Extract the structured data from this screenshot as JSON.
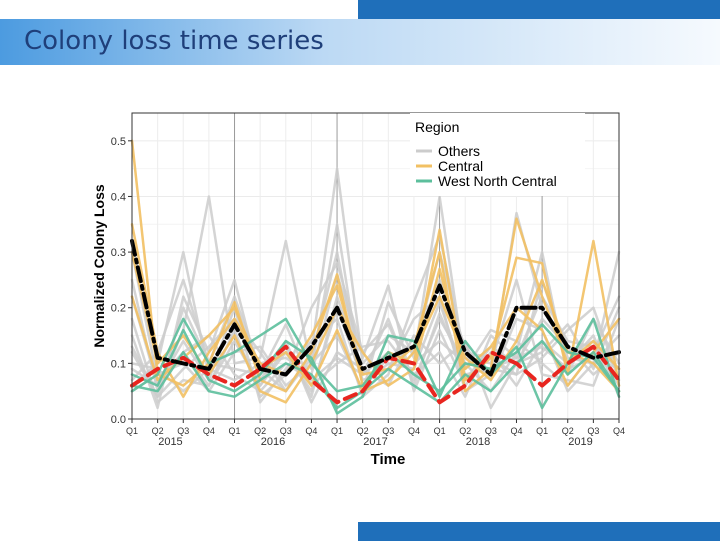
{
  "slide": {
    "title": "Colony loss time series"
  },
  "colors": {
    "others": "#cccccc",
    "central": "#f2c063",
    "west_north_central": "#5cbf9c",
    "black_series": "#000000",
    "red_series": "#e8251f",
    "accent_bar": "#1f6fba"
  },
  "chart_data": {
    "type": "line",
    "xlabel": "Time",
    "ylabel": "Normalized Colony Loss",
    "ylim": [
      0,
      0.55
    ],
    "yticks": [
      0.0,
      0.1,
      0.2,
      0.3,
      0.4,
      0.5
    ],
    "ytick_labels": [
      "0.0",
      "0.1",
      "0.2",
      "0.3",
      "0.4",
      "0.5"
    ],
    "quarters": [
      "Q1",
      "Q2",
      "Q3",
      "Q4",
      "Q1",
      "Q2",
      "Q3",
      "Q4",
      "Q1",
      "Q2",
      "Q3",
      "Q4",
      "Q1",
      "Q2",
      "Q3",
      "Q4",
      "Q1",
      "Q2",
      "Q3",
      "Q4"
    ],
    "years": [
      "2015",
      "2016",
      "2017",
      "2018",
      "2019"
    ],
    "grid": true,
    "legend": {
      "title": "Region",
      "position": "top-right",
      "entries": [
        "Others",
        "Central",
        "West North Central"
      ]
    },
    "series": [
      {
        "name": "Others",
        "group": "others",
        "values": [
          0.09,
          0.06,
          0.12,
          0.15,
          0.08,
          0.05,
          0.1,
          0.07,
          0.11,
          0.08,
          0.12,
          0.1,
          0.14,
          0.1,
          0.09,
          0.11,
          0.13,
          0.09,
          0.11,
          0.09
        ]
      },
      {
        "group": "others",
        "values": [
          0.12,
          0.04,
          0.2,
          0.1,
          0.22,
          0.09,
          0.05,
          0.12,
          0.45,
          0.1,
          0.15,
          0.12,
          0.3,
          0.12,
          0.11,
          0.08,
          0.25,
          0.11,
          0.1,
          0.15
        ]
      },
      {
        "group": "others",
        "values": [
          0.06,
          0.1,
          0.3,
          0.08,
          0.15,
          0.06,
          0.12,
          0.05,
          0.2,
          0.07,
          0.09,
          0.18,
          0.22,
          0.05,
          0.08,
          0.37,
          0.2,
          0.12,
          0.14,
          0.06
        ]
      },
      {
        "group": "others",
        "values": [
          0.25,
          0.05,
          0.16,
          0.4,
          0.1,
          0.11,
          0.32,
          0.09,
          0.35,
          0.06,
          0.1,
          0.09,
          0.21,
          0.07,
          0.13,
          0.1,
          0.12,
          0.17,
          0.09,
          0.2
        ]
      },
      {
        "group": "others",
        "values": [
          0.18,
          0.03,
          0.07,
          0.06,
          0.16,
          0.04,
          0.08,
          0.2,
          0.28,
          0.12,
          0.17,
          0.07,
          0.18,
          0.1,
          0.05,
          0.12,
          0.3,
          0.08,
          0.18,
          0.1
        ]
      },
      {
        "group": "others",
        "values": [
          0.05,
          0.08,
          0.1,
          0.05,
          0.12,
          0.13,
          0.06,
          0.1,
          0.15,
          0.05,
          0.21,
          0.11,
          0.4,
          0.09,
          0.16,
          0.14,
          0.1,
          0.06,
          0.12,
          0.22
        ]
      },
      {
        "group": "others",
        "values": [
          0.15,
          0.02,
          0.22,
          0.12,
          0.25,
          0.07,
          0.14,
          0.03,
          0.12,
          0.09,
          0.06,
          0.15,
          0.1,
          0.14,
          0.02,
          0.1,
          0.18,
          0.13,
          0.08,
          0.12
        ]
      },
      {
        "group": "others",
        "values": [
          0.1,
          0.09,
          0.05,
          0.09,
          0.07,
          0.1,
          0.11,
          0.08,
          0.26,
          0.11,
          0.24,
          0.05,
          0.16,
          0.06,
          0.12,
          0.06,
          0.14,
          0.1,
          0.15,
          0.04
        ]
      },
      {
        "group": "others",
        "values": [
          0.22,
          0.06,
          0.14,
          0.07,
          0.2,
          0.03,
          0.09,
          0.14,
          0.18,
          0.04,
          0.08,
          0.21,
          0.33,
          0.11,
          0.1,
          0.25,
          0.08,
          0.07,
          0.06,
          0.18
        ]
      },
      {
        "group": "others",
        "values": [
          0.07,
          0.12,
          0.25,
          0.1,
          0.09,
          0.08,
          0.17,
          0.06,
          0.1,
          0.13,
          0.14,
          0.08,
          0.12,
          0.04,
          0.15,
          0.11,
          0.22,
          0.14,
          0.13,
          0.09
        ]
      },
      {
        "group": "others",
        "values": [
          0.13,
          0.04,
          0.09,
          0.13,
          0.18,
          0.12,
          0.05,
          0.11,
          0.3,
          0.06,
          0.11,
          0.13,
          0.25,
          0.13,
          0.07,
          0.18,
          0.16,
          0.05,
          0.1,
          0.3
        ]
      },
      {
        "group": "others",
        "values": [
          0.3,
          0.07,
          0.12,
          0.06,
          0.14,
          0.06,
          0.13,
          0.04,
          0.22,
          0.08,
          0.18,
          0.06,
          0.19,
          0.08,
          0.09,
          0.08,
          0.11,
          0.16,
          0.2,
          0.07
        ]
      },
      {
        "name": "Central",
        "group": "central",
        "values": [
          0.5,
          0.08,
          0.06,
          0.1,
          0.21,
          0.07,
          0.05,
          0.12,
          0.26,
          0.06,
          0.12,
          0.1,
          0.34,
          0.07,
          0.11,
          0.29,
          0.28,
          0.08,
          0.32,
          0.06
        ]
      },
      {
        "group": "central",
        "values": [
          0.35,
          0.12,
          0.04,
          0.12,
          0.18,
          0.1,
          0.08,
          0.15,
          0.24,
          0.08,
          0.09,
          0.13,
          0.3,
          0.05,
          0.09,
          0.36,
          0.22,
          0.1,
          0.14,
          0.09
        ]
      },
      {
        "group": "central",
        "values": [
          0.3,
          0.1,
          0.15,
          0.08,
          0.15,
          0.05,
          0.03,
          0.1,
          0.2,
          0.12,
          0.06,
          0.09,
          0.27,
          0.09,
          0.13,
          0.2,
          0.16,
          0.06,
          0.12,
          0.18
        ]
      },
      {
        "group": "central",
        "values": [
          0.22,
          0.07,
          0.11,
          0.15,
          0.2,
          0.09,
          0.12,
          0.06,
          0.16,
          0.05,
          0.07,
          0.12,
          0.22,
          0.11,
          0.07,
          0.14,
          0.25,
          0.12,
          0.1,
          0.05
        ]
      },
      {
        "name": "West North Central",
        "group": "wnc",
        "values": [
          0.05,
          0.08,
          0.18,
          0.1,
          0.12,
          0.15,
          0.18,
          0.1,
          0.05,
          0.06,
          0.12,
          0.08,
          0.05,
          0.1,
          0.09,
          0.12,
          0.17,
          0.12,
          0.11,
          0.05
        ]
      },
      {
        "group": "wnc",
        "values": [
          0.08,
          0.06,
          0.16,
          0.07,
          0.05,
          0.08,
          0.14,
          0.11,
          0.01,
          0.04,
          0.15,
          0.14,
          0.04,
          0.14,
          0.08,
          0.13,
          0.02,
          0.1,
          0.18,
          0.04
        ]
      },
      {
        "group": "wnc",
        "values": [
          0.06,
          0.05,
          0.12,
          0.05,
          0.04,
          0.07,
          0.1,
          0.08,
          0.02,
          0.05,
          0.09,
          0.06,
          0.03,
          0.08,
          0.05,
          0.1,
          0.14,
          0.08,
          0.12,
          0.05
        ]
      },
      {
        "group": "black",
        "values": [
          0.32,
          0.11,
          0.1,
          0.09,
          0.17,
          0.09,
          0.08,
          0.13,
          0.2,
          0.09,
          0.11,
          0.13,
          0.24,
          0.12,
          0.08,
          0.2,
          0.2,
          0.13,
          0.11,
          0.12
        ]
      },
      {
        "group": "red",
        "values": [
          0.06,
          0.09,
          0.11,
          0.08,
          0.06,
          0.09,
          0.13,
          0.07,
          0.03,
          0.05,
          0.11,
          0.1,
          0.03,
          0.06,
          0.12,
          0.1,
          0.06,
          0.1,
          0.13,
          0.07
        ]
      }
    ]
  }
}
